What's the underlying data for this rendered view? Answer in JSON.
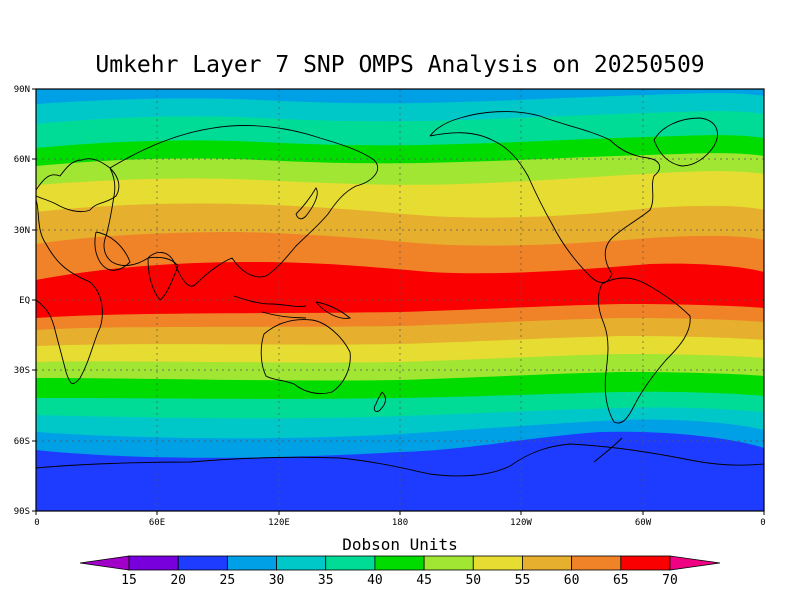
{
  "title": "Umkehr Layer 7 SNP OMPS Analysis on 20250509",
  "lat_labels": [
    "90N",
    "60N",
    "30N",
    "EQ",
    "30S",
    "60S",
    "90S"
  ],
  "lon_labels": [
    "0",
    "60E",
    "120E",
    "180",
    "120W",
    "60W",
    "0"
  ],
  "colorbar": {
    "title": "Dobson Units",
    "ticks": [
      "15",
      "20",
      "25",
      "30",
      "35",
      "40",
      "45",
      "50",
      "55",
      "60",
      "65",
      "70"
    ],
    "low_color": "#a000c8",
    "high_color": "#f00082",
    "colors": [
      "#7800dc",
      "#1e3cff",
      "#00a0e6",
      "#00c8c8",
      "#00dc96",
      "#00dc00",
      "#a0e632",
      "#e6dc32",
      "#e6af2d",
      "#f08228",
      "#fa0000"
    ]
  }
}
